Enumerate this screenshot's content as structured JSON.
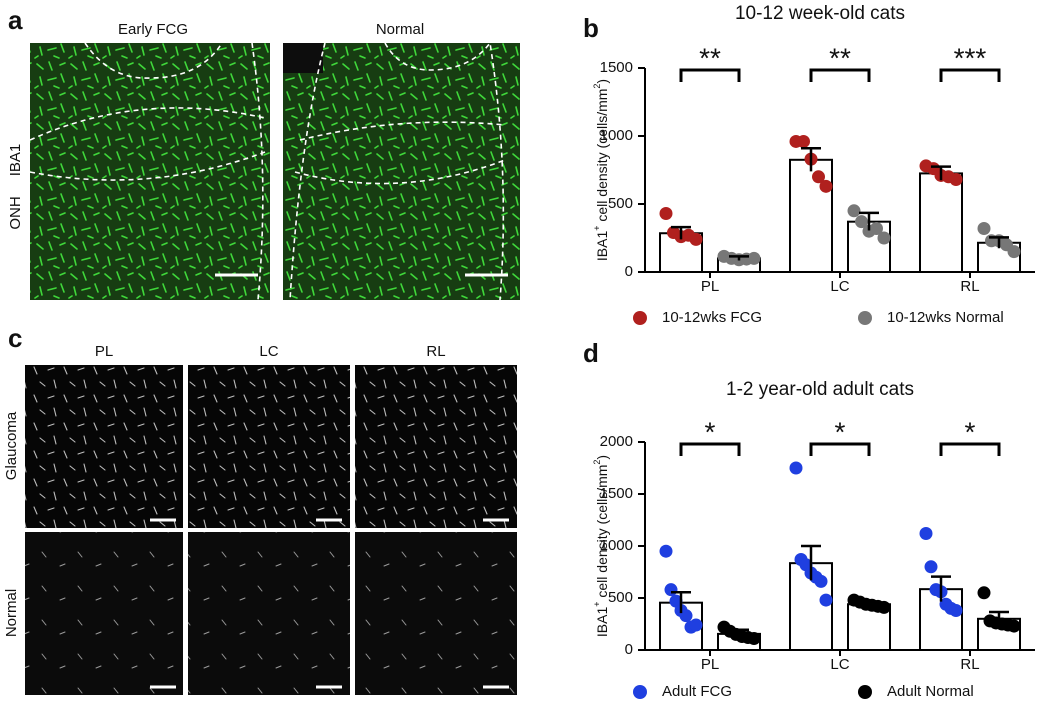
{
  "panel_a": {
    "label": "a",
    "columns": [
      "Early FCG",
      "Normal"
    ],
    "rows": [
      "IBA1",
      "ONH"
    ]
  },
  "panel_c": {
    "label": "c",
    "columns": [
      "PL",
      "LC",
      "RL"
    ],
    "rows": [
      "Glaucoma",
      "Normal"
    ]
  },
  "chart_data": [
    {
      "type": "bar",
      "panel_label": "b",
      "title": "10-12 week-old cats",
      "y_label": [
        "IBA1",
        "+",
        " cell density (cells/mm",
        "2",
        ")"
      ],
      "categories": [
        "PL",
        "LC",
        "RL"
      ],
      "series": [
        {
          "name": "10-12wks FCG",
          "color": "#b0201e",
          "values": [
            285,
            825,
            725
          ],
          "errors": [
            45,
            85,
            50
          ],
          "points": [
            [
              430,
              290,
              260,
              270,
              240
            ],
            [
              960,
              960,
              830,
              700,
              630
            ],
            [
              780,
              760,
              710,
              700,
              680
            ]
          ]
        },
        {
          "name": "10-12wks Normal",
          "color": "#777777",
          "values": [
            100,
            370,
            215
          ],
          "errors": [
            15,
            65,
            40
          ],
          "points": [
            [
              115,
              100,
              90,
              95,
              100
            ],
            [
              450,
              370,
              300,
              320,
              250
            ],
            [
              320,
              230,
              230,
              200,
              150
            ]
          ]
        }
      ],
      "significance": [
        "**",
        "**",
        "***"
      ],
      "ylim": [
        0,
        1500
      ],
      "yticks": [
        0,
        500,
        1000,
        1500
      ]
    },
    {
      "type": "bar",
      "panel_label": "d",
      "title": "1-2 year-old adult cats",
      "y_label": [
        "IBA1",
        "+",
        " cell density (cells/mm",
        "2",
        ")"
      ],
      "categories": [
        "PL",
        "LC",
        "RL"
      ],
      "series": [
        {
          "name": "Adult FCG",
          "color": "#1f3fe0",
          "values": [
            455,
            835,
            585
          ],
          "errors": [
            100,
            165,
            120
          ],
          "points": [
            [
              950,
              580,
              470,
              380,
              330,
              220,
              240
            ],
            [
              1750,
              870,
              820,
              740,
              700,
              660,
              480
            ],
            [
              1120,
              800,
              580,
              560,
              440,
              400,
              380
            ]
          ]
        },
        {
          "name": "Adult Normal",
          "color": "#000000",
          "values": [
            155,
            440,
            300
          ],
          "errors": [
            40,
            25,
            65
          ],
          "points": [
            [
              220,
              180,
              150,
              130,
              120,
              110
            ],
            [
              480,
              460,
              440,
              430,
              420,
              410
            ],
            [
              550,
              280,
              260,
              250,
              240,
              230
            ]
          ]
        }
      ],
      "significance": [
        "*",
        "*",
        "*"
      ],
      "ylim": [
        0,
        2000
      ],
      "yticks": [
        0,
        500,
        1000,
        1500,
        2000
      ]
    }
  ]
}
